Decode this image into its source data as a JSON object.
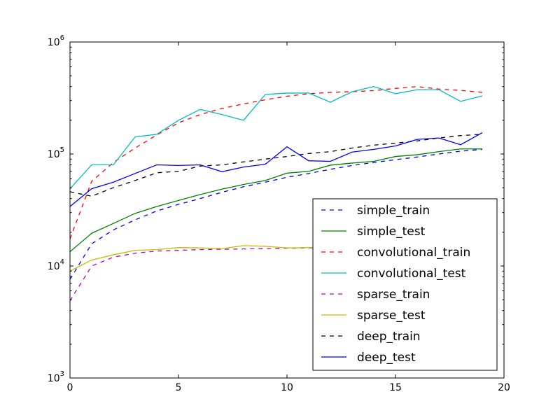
{
  "chart_data": {
    "type": "line",
    "title": "",
    "xlabel": "",
    "ylabel": "",
    "xlim": [
      0,
      20
    ],
    "ylim": [
      1000,
      1000000
    ],
    "yscale": "log",
    "grid": false,
    "legend_position": "lower-right",
    "x_ticks": [
      "0",
      "5",
      "10",
      "15",
      "20"
    ],
    "y_ticks": [
      {
        "base": "10",
        "exp": "3"
      },
      {
        "base": "10",
        "exp": "4"
      },
      {
        "base": "10",
        "exp": "5"
      },
      {
        "base": "10",
        "exp": "6"
      }
    ],
    "x": [
      0,
      1,
      2,
      3,
      4,
      5,
      6,
      7,
      8,
      9,
      10,
      11,
      12,
      13,
      14,
      15,
      16,
      17,
      18,
      19
    ],
    "series": [
      {
        "name": "simple_train",
        "color": "#0000ff",
        "dash": "dashed",
        "values": [
          7600,
          15800,
          21000,
          25800,
          31000,
          35500,
          40000,
          45500,
          51000,
          56000,
          62000,
          67000,
          73000,
          79000,
          84000,
          89000,
          94000,
          100000,
          106000,
          110000
        ]
      },
      {
        "name": "simple_test",
        "color": "#008000",
        "dash": "solid",
        "values": [
          13400,
          19600,
          24000,
          29500,
          34000,
          38500,
          43500,
          48500,
          53500,
          58000,
          67500,
          70000,
          79500,
          83000,
          86000,
          95000,
          98500,
          105000,
          111000,
          111000
        ]
      },
      {
        "name": "convolutional_train",
        "color": "#ff0000",
        "dash": "dashed",
        "values": [
          17500,
          57000,
          84000,
          113000,
          148000,
          190000,
          225000,
          255000,
          280000,
          305000,
          328000,
          345000,
          355000,
          360000,
          368000,
          385000,
          400000,
          380000,
          370000,
          355000
        ]
      },
      {
        "name": "convolutional_test",
        "color": "#00bfbf",
        "dash": "solid",
        "values": [
          49000,
          80000,
          80000,
          142000,
          150000,
          200000,
          250000,
          225000,
          200000,
          340000,
          350000,
          350000,
          290000,
          360000,
          400000,
          345000,
          375000,
          375000,
          295000,
          330000
        ]
      },
      {
        "name": "sparse_train",
        "color": "#bf00bf",
        "dash": "dashed",
        "values": [
          4900,
          10000,
          12000,
          13000,
          13600,
          13800,
          14000,
          14100,
          14200,
          14300,
          14400,
          14500,
          14600,
          14700,
          14800,
          14900,
          15000,
          15000,
          15100,
          15100
        ]
      },
      {
        "name": "sparse_test",
        "color": "#bfbf00",
        "dash": "solid",
        "values": [
          9000,
          11300,
          12600,
          13800,
          14000,
          14600,
          14500,
          14300,
          15200,
          15000,
          14500,
          14600,
          14700,
          14800,
          14900,
          15000,
          15100,
          15200,
          15200,
          15300
        ]
      },
      {
        "name": "deep_train",
        "color": "#000000",
        "dash": "dashed",
        "values": [
          46000,
          42000,
          50000,
          58000,
          68000,
          70000,
          78000,
          80000,
          85000,
          90000,
          95000,
          101000,
          105000,
          113000,
          120000,
          125000,
          131000,
          139000,
          146000,
          150000
        ]
      },
      {
        "name": "deep_test",
        "color": "#0000ff",
        "dash": "solid",
        "values": [
          34000,
          49000,
          56000,
          67000,
          80000,
          79000,
          80000,
          69500,
          76500,
          81000,
          116000,
          87000,
          86000,
          104000,
          110000,
          118000,
          135000,
          139000,
          121000,
          155000
        ]
      }
    ]
  }
}
